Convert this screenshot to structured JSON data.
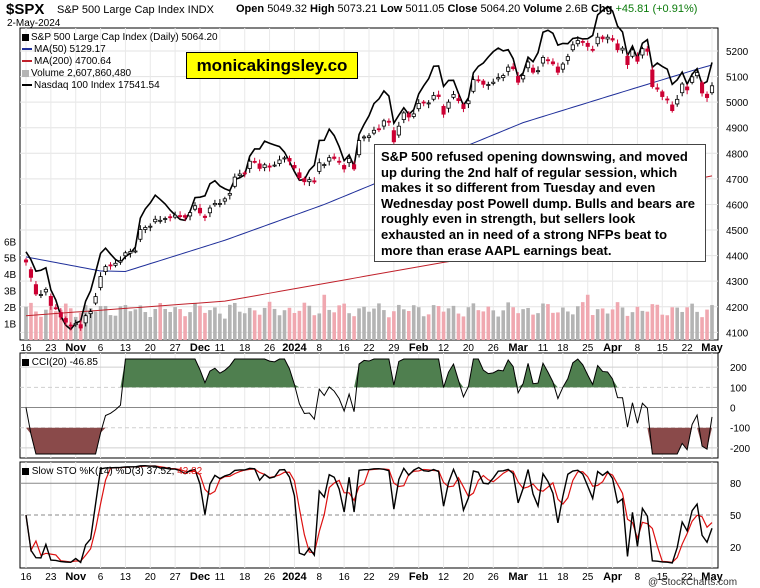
{
  "header": {
    "symbol": "$SPX",
    "name": "S&P 500 Large Cap Index INDX",
    "date": "2-May-2024",
    "open_label": "Open",
    "open": "5049.32",
    "high_label": "High",
    "high": "5073.21",
    "low_label": "Low",
    "low": "5011.05",
    "close_label": "Close",
    "close": "5064.20",
    "volume_label": "Volume",
    "volume": "2.6B",
    "chg_label": "Chg",
    "chg": "+45.81 (+0.91%)",
    "credit": "@ StockCharts.com"
  },
  "legend": {
    "main": "S&P 500 Large Cap Index (Daily) 5064.20",
    "ma50": "MA(50) 5129.17",
    "ma200": "MA(200) 4700.64",
    "volume": "Volume 2,607,860,480",
    "nasdaq": "Nasdaq 100 Index 17541.54"
  },
  "site_banner": "monicakingsley.co",
  "annotation": "S&P 500 refused opening downswing, and moved up during the 2nd half of regular session, which makes it so different from Tuesday and even Wednesday post Powell dump. Bulls and bears are roughly even in strength, but sellers look exhausted an in need of a strong NFPs beat to more than erase AAPL earnings beat.",
  "cci_label": "CCI(20) -46.85",
  "sto_label_prefix": "Slow STO %K(14) %D(3) 37.52, ",
  "sto_label_d": "42.82",
  "colors": {
    "up_candle": "#000000",
    "down_candle": "#cc0033",
    "ma50": "#1f2f9a",
    "ma200": "#c0202a",
    "nasdaq": "#000000",
    "volume_up": "#b4b4b4",
    "volume_down": "#f0a8b0",
    "cci_pos": "#4f7f4f",
    "cci_neg": "#8a4a4a",
    "sto_k": "#000000",
    "sto_d": "#dd1111"
  },
  "chart_data": [
    {
      "type": "candlestick",
      "title": "S&P 500 Large Cap Index (Daily)",
      "y_axis_ticks": [
        4100,
        4200,
        4300,
        4400,
        4500,
        4600,
        4700,
        4800,
        4900,
        5000,
        5100,
        5200
      ],
      "ylim": [
        4070,
        5290
      ],
      "x_axis_labels": [
        "16",
        "23",
        "Nov",
        "6",
        "13",
        "20",
        "27",
        "Dec",
        "11",
        "18",
        "26",
        "2024",
        "8",
        "16",
        "22",
        "29",
        "Feb",
        "12",
        "20",
        "26",
        "Mar",
        "11",
        "18",
        "25",
        "Apr",
        "8",
        "15",
        "22",
        "May"
      ],
      "x_label_bold": [
        "Nov",
        "Dec",
        "2024",
        "Feb",
        "Mar",
        "Apr",
        "May"
      ],
      "close": [
        4375,
        4315,
        4250,
        4248,
        4268,
        4205,
        4195,
        4160,
        4140,
        4125,
        4135,
        4117,
        4165,
        4181,
        4240,
        4318,
        4357,
        4362,
        4370,
        4380,
        4411,
        4416,
        4418,
        4502,
        4510,
        4515,
        4542,
        4538,
        4545,
        4551,
        4558,
        4555,
        4550,
        4568,
        4595,
        4567,
        4549,
        4586,
        4604,
        4604,
        4622,
        4643,
        4707,
        4719,
        4720,
        4769,
        4768,
        4741,
        4755,
        4746,
        4754,
        4774,
        4782,
        4770,
        4743,
        4705,
        4689,
        4697,
        4688,
        4763,
        4756,
        4783,
        4780,
        4766,
        4739,
        4780,
        4739,
        4850,
        4864,
        4868,
        4890,
        4894,
        4927,
        4924,
        4845,
        4906,
        4958,
        4942,
        4954,
        4995,
        4998,
        4997,
        5026,
        5022,
        4953,
        5000,
        5030,
        5006,
        4975,
        5005,
        5088,
        5087,
        5070,
        5069,
        5078,
        5096,
        5104,
        5137,
        5131,
        5078,
        5104,
        5157,
        5117,
        5123,
        5175,
        5165,
        5150,
        5117,
        5149,
        5178,
        5224,
        5241,
        5234,
        5218,
        5203,
        5254,
        5248,
        5254,
        5243,
        5205,
        5211,
        5147,
        5204,
        5160,
        5209,
        5199,
        5061,
        5051,
        5022,
        5011,
        4967,
        5011,
        5071,
        5048,
        5099,
        5116,
        5036,
        5018,
        5064
      ],
      "series": [
        {
          "name": "MA(50)",
          "values_at_anchors": {
            "0": 4395,
            "15": 4340,
            "20": 4338,
            "40": 4460,
            "60": 4600,
            "80": 4760,
            "100": 4920,
            "120": 5040,
            "135": 5129
          }
        },
        {
          "name": "MA(200)",
          "values_at_anchors": {
            "0": 4165,
            "40": 4222,
            "80": 4360,
            "110": 4460,
            "135": 4700
          }
        },
        {
          "name": "Nasdaq 100 Index",
          "last": 17541.54
        }
      ]
    },
    {
      "type": "bar",
      "title": "Volume",
      "y_axis_ticks_labels": [
        "1B",
        "2B",
        "3B",
        "4B",
        "5B",
        "6B"
      ],
      "last": 2607860480
    },
    {
      "type": "area",
      "title": "CCI(20)",
      "y_axis_ticks": [
        200,
        100,
        0,
        -100,
        -200
      ],
      "ylim": [
        -250,
        270
      ],
      "last": -46.85
    },
    {
      "type": "line",
      "title": "Slow STO %K(14) %D(3)",
      "y_axis_ticks": [
        80,
        50,
        20
      ],
      "ylim": [
        0,
        100
      ],
      "series": [
        {
          "name": "%K",
          "last": 37.52
        },
        {
          "name": "%D",
          "last": 42.82
        }
      ]
    }
  ]
}
